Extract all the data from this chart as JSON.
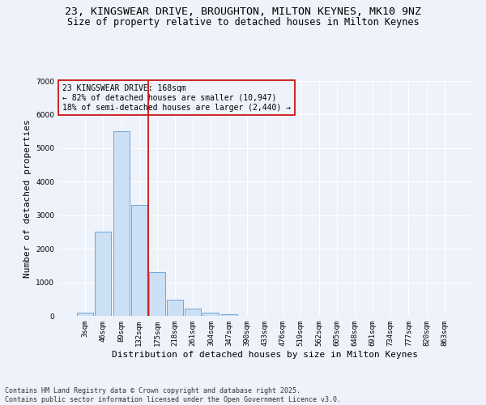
{
  "title_line1": "23, KINGSWEAR DRIVE, BROUGHTON, MILTON KEYNES, MK10 9NZ",
  "title_line2": "Size of property relative to detached houses in Milton Keynes",
  "xlabel": "Distribution of detached houses by size in Milton Keynes",
  "ylabel": "Number of detached properties",
  "categories": [
    "3sqm",
    "46sqm",
    "89sqm",
    "132sqm",
    "175sqm",
    "218sqm",
    "261sqm",
    "304sqm",
    "347sqm",
    "390sqm",
    "433sqm",
    "476sqm",
    "519sqm",
    "562sqm",
    "605sqm",
    "648sqm",
    "691sqm",
    "734sqm",
    "777sqm",
    "820sqm",
    "863sqm"
  ],
  "values": [
    100,
    2500,
    5500,
    3300,
    1300,
    480,
    220,
    90,
    55,
    10,
    0,
    0,
    0,
    0,
    0,
    0,
    0,
    0,
    0,
    0,
    0
  ],
  "bar_color": "#cce0f5",
  "bar_edge_color": "#5b9bd5",
  "vline_index": 3.5,
  "vline_color": "#cc0000",
  "annotation_title": "23 KINGSWEAR DRIVE: 168sqm",
  "annotation_line2": "← 82% of detached houses are smaller (10,947)",
  "annotation_line3": "18% of semi-detached houses are larger (2,440) →",
  "annotation_box_color": "#cc0000",
  "ylim": [
    0,
    7000
  ],
  "yticks": [
    0,
    1000,
    2000,
    3000,
    4000,
    5000,
    6000,
    7000
  ],
  "footer_line1": "Contains HM Land Registry data © Crown copyright and database right 2025.",
  "footer_line2": "Contains public sector information licensed under the Open Government Licence v3.0.",
  "background_color": "#eef2fa",
  "grid_color": "#ffffff",
  "title_fontsize": 9.5,
  "subtitle_fontsize": 8.5,
  "axis_label_fontsize": 8,
  "tick_fontsize": 6.5,
  "annotation_fontsize": 7,
  "footer_fontsize": 6
}
